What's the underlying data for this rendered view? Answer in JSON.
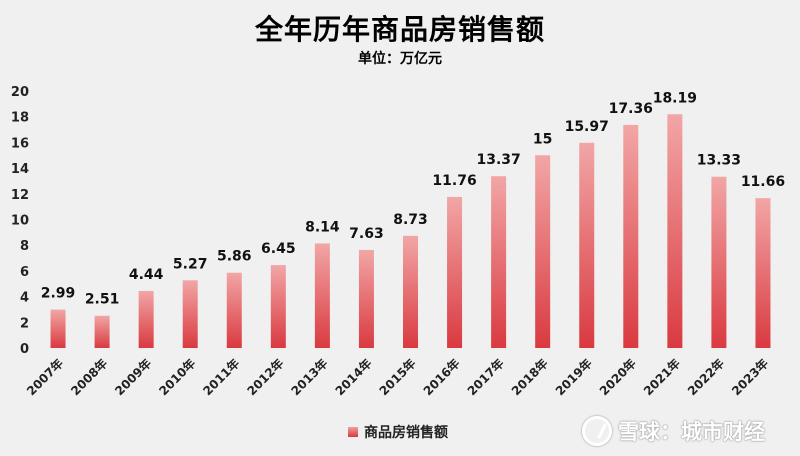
{
  "chart_data": {
    "type": "bar",
    "title": "全年历年商品房销售额",
    "subtitle": "单位：万亿元",
    "categories": [
      "2007年",
      "2008年",
      "2009年",
      "2010年",
      "2011年",
      "2012年",
      "2013年",
      "2014年",
      "2015年",
      "2016年",
      "2017年",
      "2018年",
      "2019年",
      "2020年",
      "2021年",
      "2022年",
      "2023年"
    ],
    "series": [
      {
        "name": "商品房销售额",
        "values": [
          2.99,
          2.51,
          4.44,
          5.27,
          5.86,
          6.45,
          8.14,
          7.63,
          8.73,
          11.76,
          13.37,
          15,
          15.97,
          17.36,
          18.19,
          13.33,
          11.66
        ]
      }
    ],
    "data_labels": [
      "2.99",
      "2.51",
      "4.44",
      "5.27",
      "5.86",
      "6.45",
      "8.14",
      "7.63",
      "8.73",
      "11.76",
      "13.37",
      "15",
      "15.97",
      "17.36",
      "18.19",
      "13.33",
      "11.66"
    ],
    "ylim": [
      0,
      20
    ],
    "yticks": [
      0,
      2,
      4,
      6,
      8,
      10,
      12,
      14,
      16,
      18,
      20
    ],
    "grid": false,
    "legend_position": "bottom",
    "colors": {
      "bar_top": "#f2a6a6",
      "bar_bottom": "#d93a40",
      "background": "#f0f0f0"
    }
  },
  "watermark": {
    "text": "雪球：城市财经",
    "icon": "snowball-logo-icon"
  }
}
